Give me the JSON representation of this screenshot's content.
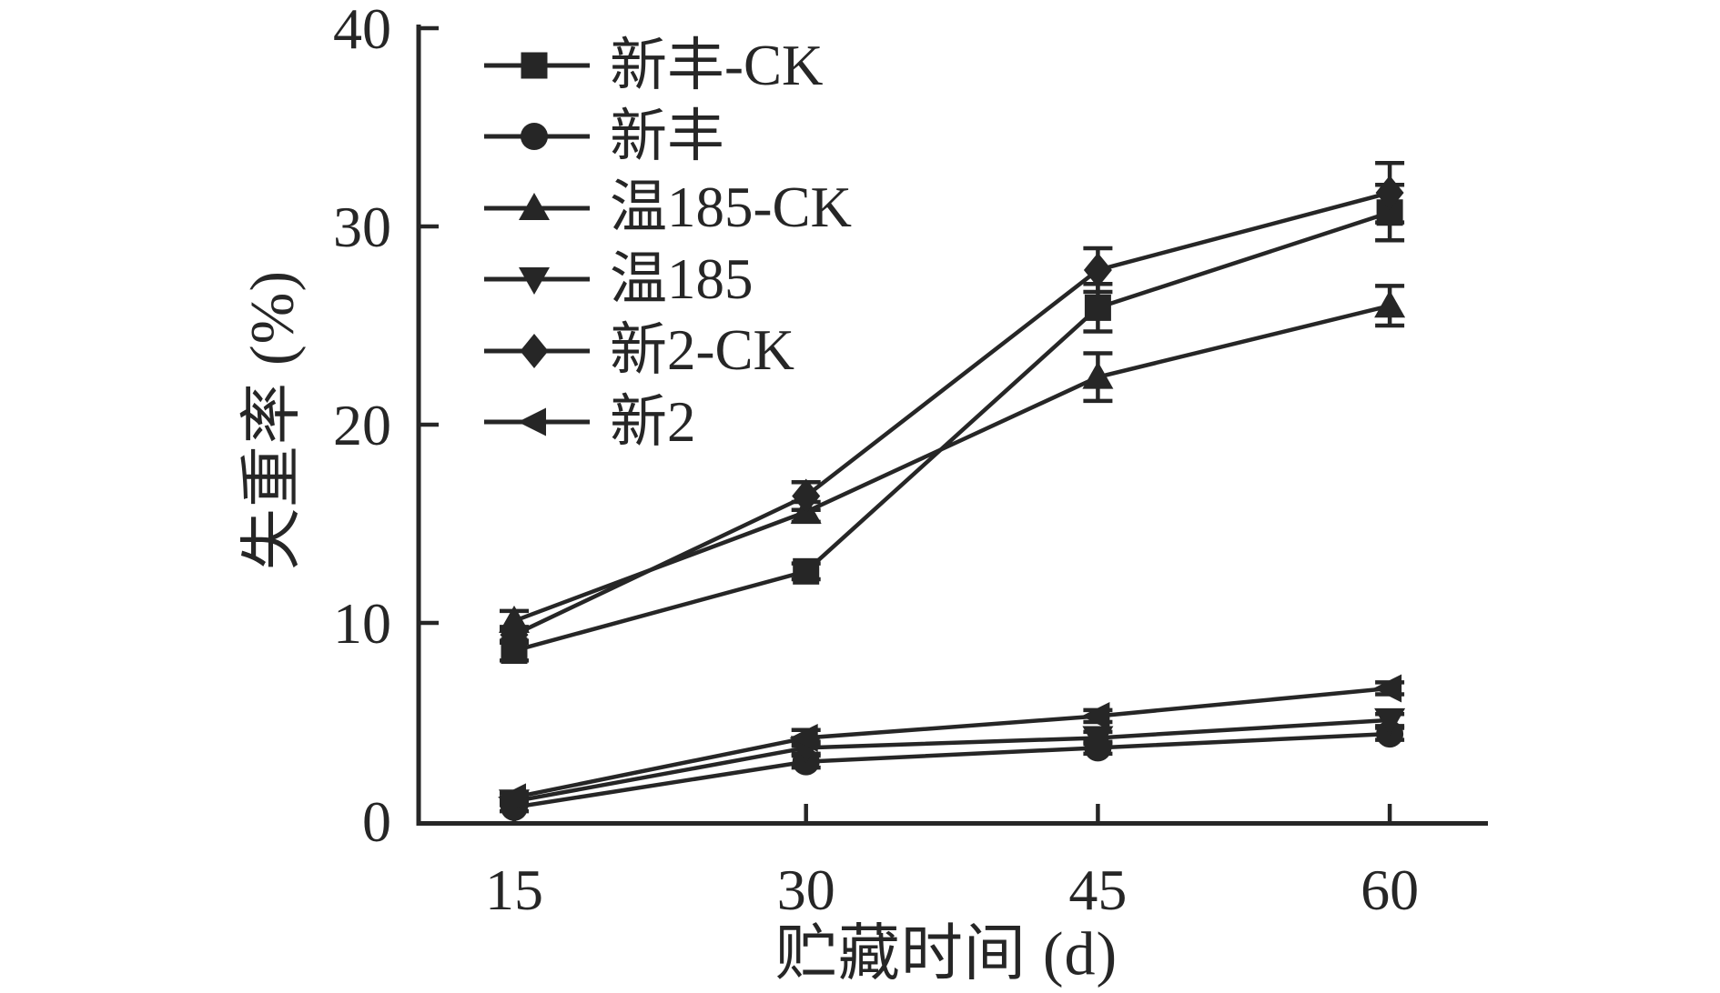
{
  "chart_data": {
    "type": "line",
    "title": "",
    "xlabel": "贮藏时间 (d)",
    "ylabel": "失重率 (%)",
    "x": [
      15,
      30,
      45,
      60
    ],
    "x_tick_labels": [
      "15",
      "30",
      "45",
      "60"
    ],
    "y_ticks": [
      0,
      10,
      20,
      30,
      40
    ],
    "ylim": [
      0,
      40
    ],
    "grid": false,
    "legend_position": "top-left-inside",
    "ink_color": "#262626",
    "background_color": "#ffffff",
    "error_bars": true,
    "series": [
      {
        "name": "新丰-CK",
        "marker": "square",
        "values": [
          8.6,
          12.6,
          25.9,
          30.7
        ],
        "errors": [
          0.5,
          0.4,
          1.2,
          1.4
        ]
      },
      {
        "name": "新丰",
        "marker": "circle",
        "values": [
          0.7,
          3.0,
          3.7,
          4.4
        ],
        "errors": [
          0.2,
          0.3,
          0.3,
          0.3
        ]
      },
      {
        "name": "温185-CK",
        "marker": "triangle-up",
        "values": [
          10.1,
          15.6,
          22.4,
          26.0
        ],
        "errors": [
          0.5,
          0.5,
          1.2,
          1.0
        ]
      },
      {
        "name": "温185",
        "marker": "triangle-down",
        "values": [
          1.0,
          3.7,
          4.2,
          5.1
        ],
        "errors": [
          0.2,
          0.3,
          0.3,
          0.3
        ]
      },
      {
        "name": "新2-CK",
        "marker": "diamond",
        "values": [
          9.4,
          16.4,
          27.8,
          31.7
        ],
        "errors": [
          0.4,
          0.7,
          1.1,
          1.5
        ]
      },
      {
        "name": "新2",
        "marker": "triangle-left",
        "values": [
          1.2,
          4.2,
          5.3,
          6.7
        ],
        "errors": [
          0.2,
          0.4,
          0.3,
          0.3
        ]
      }
    ]
  }
}
